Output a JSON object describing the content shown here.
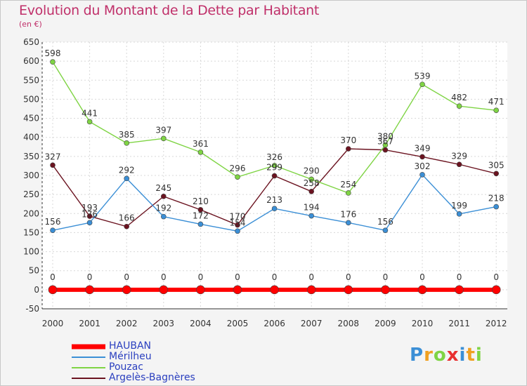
{
  "title": "Evolution du Montant de la Dette par Habitant",
  "subtitle": "(en €)",
  "chart_data": {
    "type": "line",
    "x": [
      "2000",
      "2001",
      "2002",
      "2003",
      "2004",
      "2005",
      "2006",
      "2007",
      "2008",
      "2009",
      "2010",
      "2011",
      "2012"
    ],
    "ylim": [
      -50,
      650
    ],
    "yticks": [
      -50,
      0,
      50,
      100,
      150,
      200,
      250,
      300,
      350,
      400,
      450,
      500,
      550,
      600,
      650
    ],
    "grid": true,
    "legend_position": "bottom-left",
    "series": [
      {
        "name": "HAUBAN",
        "color": "#ff0000",
        "values": [
          0,
          0,
          0,
          0,
          0,
          0,
          0,
          0,
          0,
          0,
          0,
          0,
          0
        ]
      },
      {
        "name": "Mérilheu",
        "color": "#3b8fd6",
        "values": [
          156,
          176,
          292,
          192,
          172,
          154,
          213,
          194,
          176,
          156,
          302,
          199,
          218
        ]
      },
      {
        "name": "Pouzac",
        "color": "#7fd444",
        "values": [
          598,
          441,
          385,
          397,
          361,
          296,
          326,
          290,
          254,
          380,
          539,
          482,
          471
        ]
      },
      {
        "name": "Argelès-Bagnères",
        "color": "#6b1320",
        "values": [
          327,
          193,
          166,
          245,
          210,
          170,
          299,
          258,
          370,
          367,
          349,
          329,
          305
        ]
      }
    ],
    "data_labels": [
      [
        "0",
        "0",
        "0",
        "0",
        "0",
        "0",
        "0",
        "0",
        "0",
        "0",
        "0",
        "0",
        "0"
      ],
      [
        "156",
        "176",
        "292",
        "192",
        "172",
        "154",
        "213",
        "194",
        "176",
        "156",
        "302",
        "199",
        "218"
      ],
      [
        "598",
        "441",
        "385",
        "397",
        "361",
        "296",
        "326",
        "290",
        "254",
        "380",
        "539",
        "482",
        "471"
      ],
      [
        "327",
        "193",
        "166",
        "245",
        "210",
        "170",
        "299",
        "258",
        "370",
        "367",
        "349",
        "329",
        "305"
      ]
    ]
  },
  "logo": {
    "text": "Proxiti",
    "colors": [
      "#3b8fd6",
      "#f0a020",
      "#7fd444",
      "#e83030",
      "#3b8fd6",
      "#f0a020",
      "#7fd444"
    ]
  }
}
